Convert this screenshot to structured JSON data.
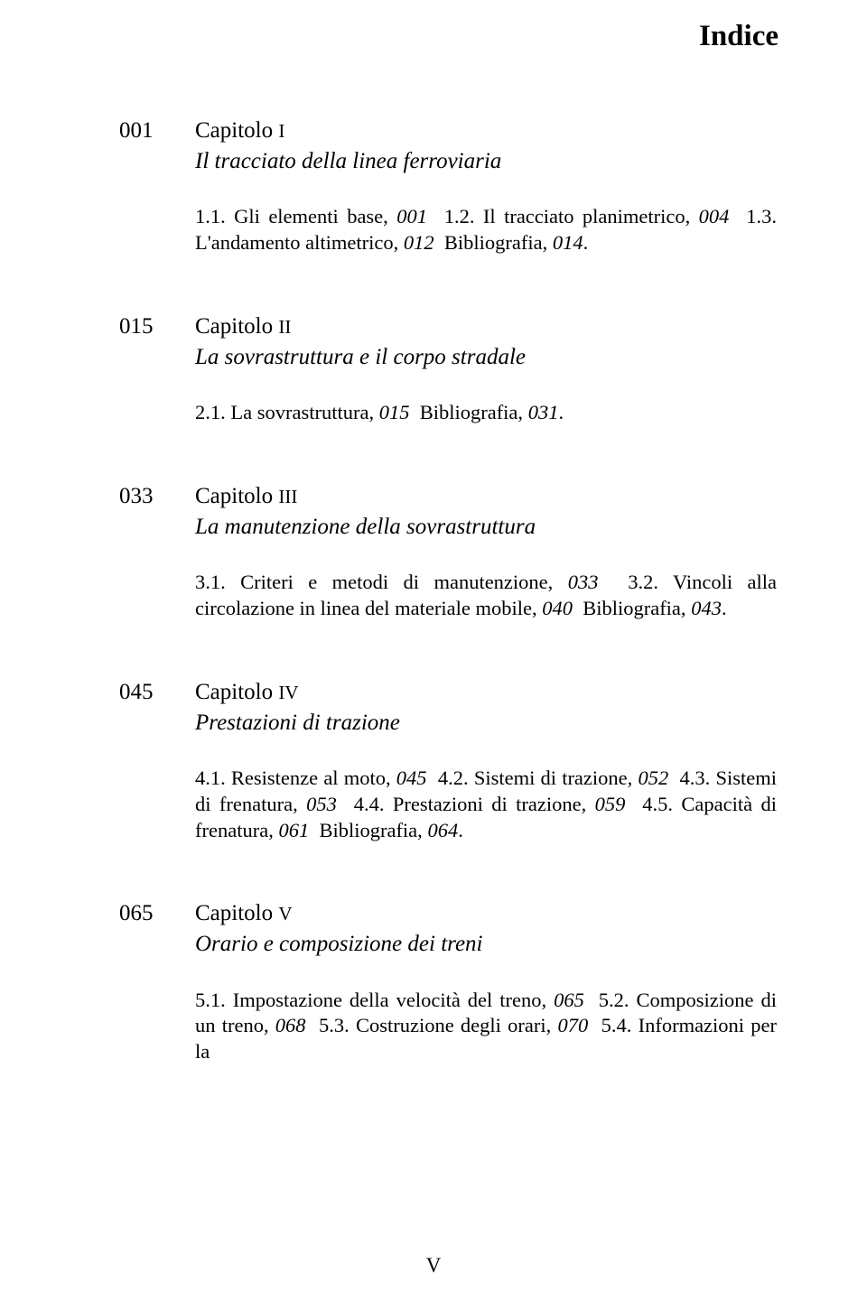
{
  "pageTitle": "Indice",
  "footerPageNumber": "V",
  "chapters": [
    {
      "pageNum": "001",
      "label": "Capitolo ",
      "numeral": "I",
      "title": "Il tracciato della linea ferroviaria",
      "body_html": "1.1. Gli elementi base, <span class=\"it\">001</span> &nbsp;1.2. Il tracciato planimetrico, <span class=\"it\">004</span> &nbsp;1.3. L'andamento altimetrico, <span class=\"it\">012</span> &nbsp;Bibliografia, <span class=\"it\">014</span>."
    },
    {
      "pageNum": "015",
      "label": "Capitolo ",
      "numeral": "II",
      "title": "La sovrastruttura e il corpo stradale",
      "body_html": "2.1. La sovrastruttura, <span class=\"it\">015</span> &nbsp;Bibliografia, <span class=\"it\">031</span>."
    },
    {
      "pageNum": "033",
      "label": "Capitolo ",
      "numeral": "III",
      "title": "La manutenzione della sovrastruttura",
      "body_html": "3.1. Criteri e metodi di manutenzione, <span class=\"it\">033</span> &nbsp;3.2. Vincoli alla circolazione in linea del materiale mobile, <span class=\"it\">040</span> &nbsp;Bibliografia, <span class=\"it\">043</span>."
    },
    {
      "pageNum": "045",
      "label": "Capitolo ",
      "numeral": "IV",
      "title": "Prestazioni di trazione",
      "body_html": "4.1. Resistenze al moto, <span class=\"it\">045</span> &nbsp;4.2. Sistemi di trazione, <span class=\"it\">052</span> &nbsp;4.3. Sistemi di frenatura, <span class=\"it\">053</span> &nbsp;4.4. Prestazioni di trazione, <span class=\"it\">059</span> &nbsp;4.5. Capacità di frenatura, <span class=\"it\">061</span> &nbsp;Bibliografia, <span class=\"it\">064</span>."
    },
    {
      "pageNum": "065",
      "label": "Capitolo ",
      "numeral": "V",
      "title": "Orario e composizione dei treni",
      "body_html": "5.1. Impostazione della velocità del treno, <span class=\"it\">065</span> &nbsp;5.2. Composizione di un treno, <span class=\"it\">068</span> &nbsp;5.3. Costruzione degli orari, <span class=\"it\">070</span> &nbsp;5.4. Informazioni per la"
    }
  ]
}
